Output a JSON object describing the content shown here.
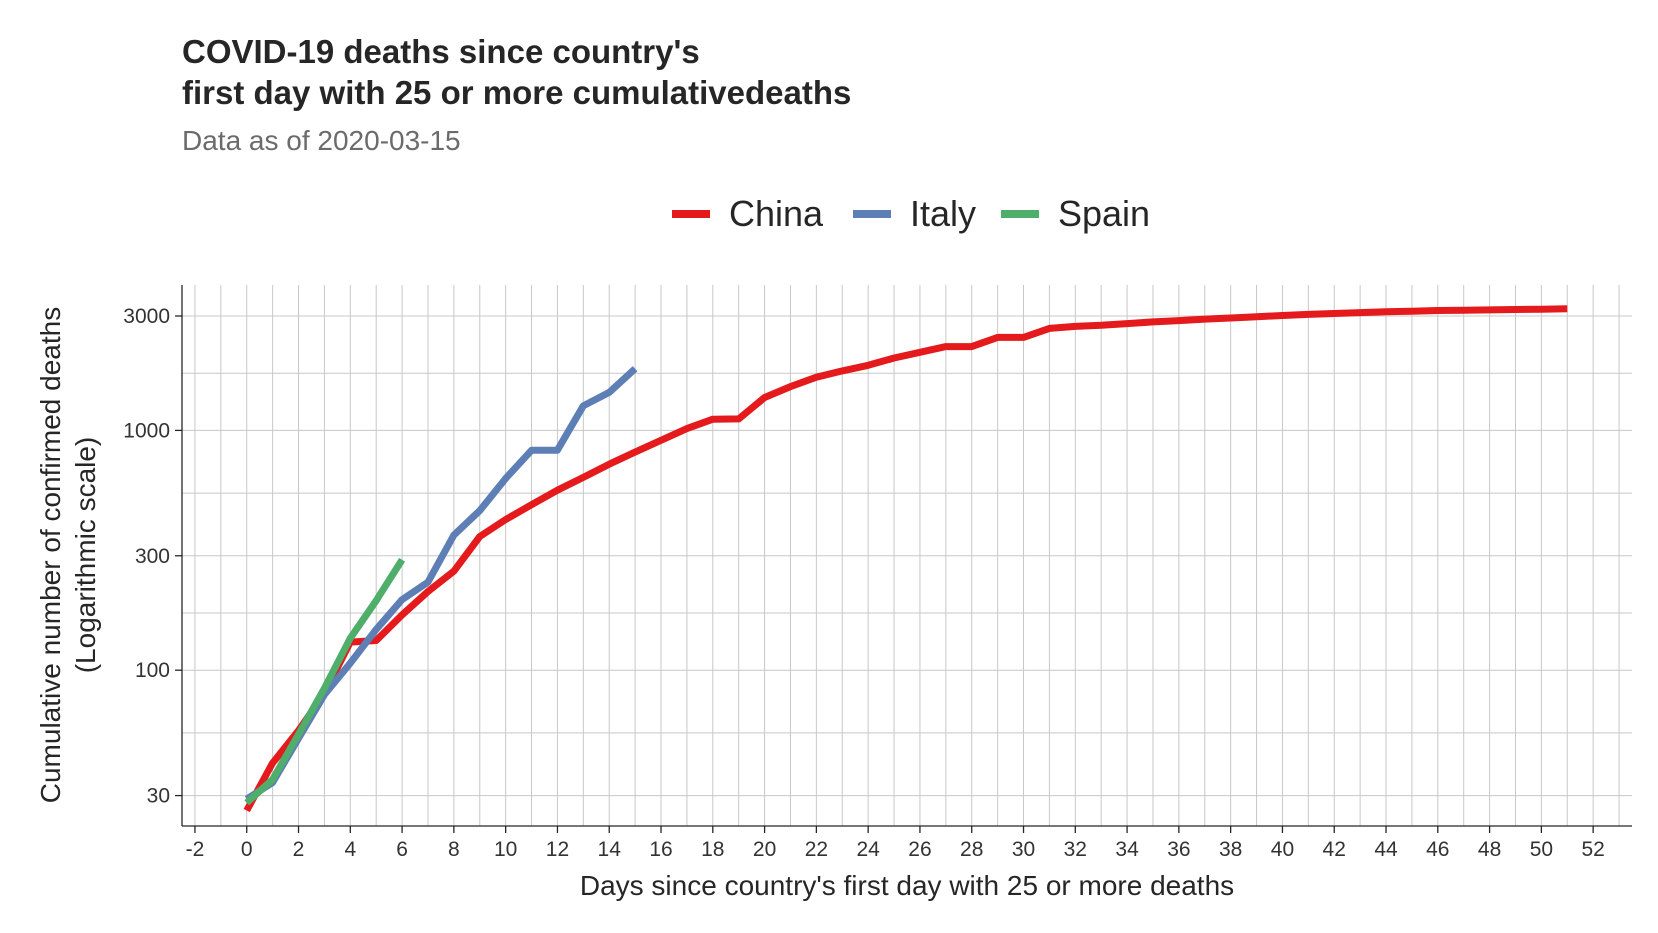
{
  "chart_data": {
    "type": "line",
    "title_lines": [
      "COVID-19 deaths since country's",
      "first day with 25 or more cumulativedeaths"
    ],
    "subtitle": "Data as of 2020-03-15",
    "xlabel": "Days since country's first day with 25 or more deaths",
    "ylabel_lines": [
      "Cumulative number of confirmed deaths",
      "(Logarithmic scale)"
    ],
    "y_scale": "log10",
    "xlim": [
      -2.5,
      53.5
    ],
    "ylim": [
      22.4,
      4040
    ],
    "x_ticks": [
      -2,
      0,
      2,
      4,
      6,
      8,
      10,
      12,
      14,
      16,
      18,
      20,
      22,
      24,
      26,
      28,
      30,
      32,
      34,
      36,
      38,
      40,
      42,
      44,
      46,
      48,
      50,
      52
    ],
    "y_ticks": [
      30,
      100,
      300,
      1000,
      3000
    ],
    "grid": true,
    "legend_position": "top",
    "series": [
      {
        "name": "China",
        "color": "#e41a1c",
        "x": [
          0,
          1,
          2,
          3,
          4,
          5,
          6,
          7,
          8,
          9,
          10,
          11,
          12,
          13,
          14,
          15,
          16,
          17,
          18,
          19,
          20,
          21,
          22,
          23,
          24,
          25,
          26,
          27,
          28,
          29,
          30,
          31,
          32,
          33,
          34,
          35,
          36,
          37,
          38,
          39,
          40,
          41,
          42,
          43,
          44,
          45,
          46,
          47,
          48,
          49,
          50,
          51
        ],
        "y": [
          26,
          41,
          56,
          80,
          131,
          133,
          170,
          213,
          259,
          361,
          425,
          490,
          563,
          637,
          723,
          812,
          909,
          1017,
          1114,
          1117,
          1371,
          1523,
          1666,
          1770,
          1868,
          2004,
          2118,
          2236,
          2236,
          2442,
          2442,
          2663,
          2715,
          2744,
          2788,
          2835,
          2870,
          2912,
          2943,
          2981,
          3013,
          3045,
          3073,
          3099,
          3123,
          3140,
          3162,
          3173,
          3180,
          3193,
          3203,
          3217
        ]
      },
      {
        "name": "Italy",
        "color": "#5e7fb5",
        "x": [
          0,
          1,
          2,
          3,
          4,
          5,
          6,
          7,
          8,
          9,
          10,
          11,
          12,
          13,
          14,
          15
        ],
        "y": [
          29,
          34,
          52,
          79,
          107,
          148,
          197,
          233,
          366,
          463,
          631,
          827,
          827,
          1266,
          1441,
          1809
        ]
      },
      {
        "name": "Spain",
        "color": "#4eae6a",
        "x": [
          0,
          1,
          2,
          3,
          4,
          5,
          6
        ],
        "y": [
          28,
          35,
          54,
          84,
          136,
          195,
          289
        ]
      }
    ]
  }
}
